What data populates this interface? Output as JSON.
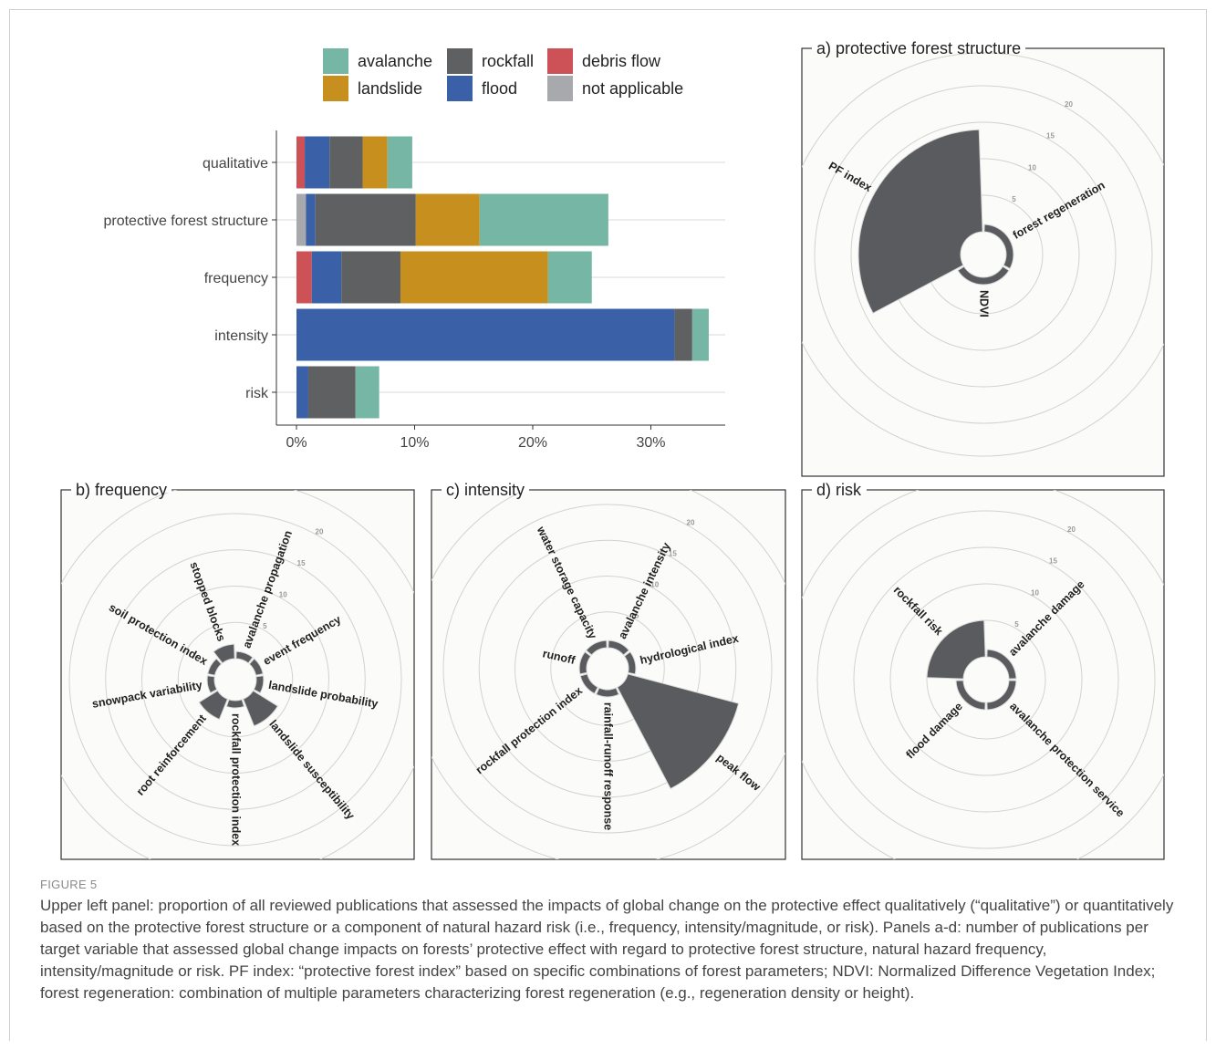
{
  "colors": {
    "avalanche": "#76b6a5",
    "rockfall": "#5e6062",
    "debris flow": "#cc5257",
    "landslide": "#c7901e",
    "flood": "#3a60a8",
    "not applicable": "#a7a9ac",
    "polar_fill": "#595b5e"
  },
  "chart_data": [
    {
      "type": "bar",
      "orientation": "horizontal",
      "stacked": true,
      "categories": [
        "qualitative",
        "protective forest structure",
        "frequency",
        "intensity",
        "risk"
      ],
      "series": [
        {
          "name": "not applicable",
          "values": [
            0,
            0.8,
            0,
            0,
            0
          ]
        },
        {
          "name": "debris flow",
          "values": [
            0.7,
            0,
            1.3,
            0,
            0
          ]
        },
        {
          "name": "flood",
          "values": [
            2.1,
            0.8,
            2.5,
            32.0,
            1.0
          ]
        },
        {
          "name": "rockfall",
          "values": [
            2.8,
            8.5,
            5.0,
            1.5,
            4.0
          ]
        },
        {
          "name": "landslide",
          "values": [
            2.1,
            5.4,
            12.5,
            0,
            0
          ]
        },
        {
          "name": "avalanche",
          "values": [
            2.1,
            10.9,
            3.7,
            1.4,
            2.0
          ]
        }
      ],
      "legend_order": [
        "avalanche",
        "rockfall",
        "debris flow",
        "landslide",
        "flood",
        "not applicable"
      ],
      "legend_position": "top",
      "x_ticks": [
        "0%",
        "10%",
        "20%",
        "30%"
      ],
      "xlim": [
        0,
        35
      ],
      "grid": true
    },
    {
      "type": "polar-bar",
      "panel_title": "a) protective forest structure",
      "rings": [
        5,
        10,
        15,
        20
      ],
      "ring_labels": [
        "5",
        "10",
        "15",
        "20"
      ],
      "rmax": 20,
      "categories": [
        "forest regeneration",
        "NDVI",
        "PF index"
      ],
      "values": [
        1,
        1,
        14
      ]
    },
    {
      "type": "polar-bar",
      "panel_title": "b) frequency",
      "rings": [
        5,
        10,
        15,
        20
      ],
      "ring_labels": [
        "5",
        "10",
        "15",
        "20"
      ],
      "rmax": 20,
      "categories": [
        "avalanche propagation",
        "event frequency",
        "landslide probability",
        "landslide susceptibility",
        "rockfall protection index",
        "root reinforcement",
        "snowpack variability",
        "soil protection index",
        "stopped blocks"
      ],
      "values": [
        1,
        1,
        1,
        4,
        1,
        3,
        1,
        1,
        2
      ]
    },
    {
      "type": "polar-bar",
      "panel_title": "c) intensity",
      "rings": [
        5,
        10,
        15,
        20
      ],
      "ring_labels": [
        "5",
        "10",
        "15",
        "20"
      ],
      "rmax": 20,
      "categories": [
        "avalanche intensity",
        "hydrological index",
        "peak flow",
        "rainfall-runoff response",
        "rockfall protection index",
        "runoff",
        "water storage capacity"
      ],
      "values": [
        1,
        1,
        16,
        1,
        1,
        1,
        1
      ]
    },
    {
      "type": "polar-bar",
      "panel_title": "d) risk",
      "rings": [
        5,
        10,
        15,
        20
      ],
      "ring_labels": [
        "5",
        "10",
        "15",
        "20"
      ],
      "rmax": 20,
      "categories": [
        "avalanche damage",
        "avalanche protection service",
        "flood damage",
        "rockfall risk"
      ],
      "values": [
        1,
        1,
        1,
        5
      ]
    }
  ],
  "caption": {
    "label": "FIGURE 5",
    "text": "Upper left panel: proportion of all reviewed publications that assessed the impacts of global change on the protective effect qualitatively (“qualitative”) or quantitatively based on the protective forest structure or a component of natural hazard risk (i.e., frequency, intensity/magnitude, or risk). Panels a-d: number of publications per target variable that assessed global change impacts on forests’ protective effect with regard to protective forest structure, natural hazard frequency, intensity/magnitude or risk. PF index: “protective forest index” based on specific combinations of forest parameters; NDVI: Normalized Difference Vegetation Index; forest regeneration: combination of multiple parameters characterizing forest regeneration (e.g., regeneration density or height)."
  }
}
